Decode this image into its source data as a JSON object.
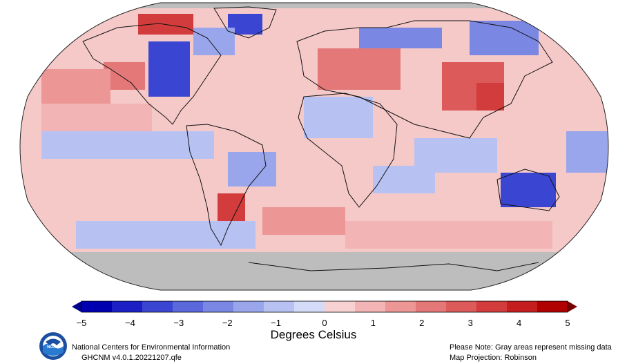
{
  "map": {
    "projection_note": "Map Projection: Robinson",
    "missing_note": "Please Note: Gray areas represent missing data",
    "missing_color": "#bdbdbd"
  },
  "colorbar": {
    "title": "Degrees Celsius",
    "ticks": [
      "−5",
      "−4",
      "−3",
      "−2",
      "−1",
      "0",
      "1",
      "2",
      "3",
      "4",
      "5"
    ],
    "colors": [
      "#0000b0",
      "#1c20c4",
      "#3a46d2",
      "#5a68dc",
      "#7a88e4",
      "#9aa6ec",
      "#b8c2f2",
      "#d4dbf8",
      "#f8d2d2",
      "#f2b4b4",
      "#ec9696",
      "#e47878",
      "#dc5a5a",
      "#d23c3c",
      "#c41e1e",
      "#b00000"
    ],
    "under_color": "#00008a",
    "over_color": "#7a0000"
  },
  "footer": {
    "org": "National Centers for Environmental Information",
    "dataset": "GHCNM v4.0.1.20221207.qfe"
  },
  "logo": {
    "text": "NOAA",
    "icon": "noaa-logo-icon"
  }
}
